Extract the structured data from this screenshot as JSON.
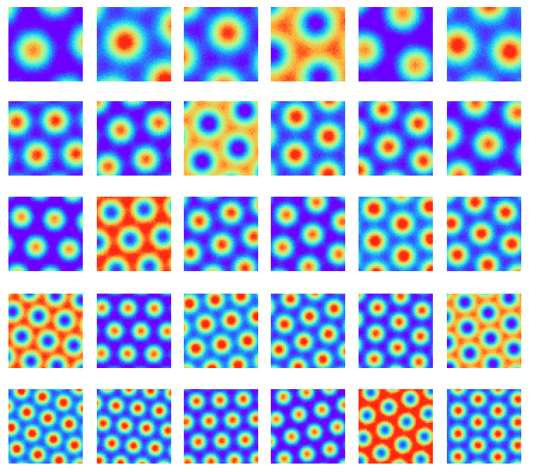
{
  "figure": {
    "rows": 5,
    "cols": 6,
    "colormap": "rainbow",
    "palette": [
      "#6a00ff",
      "#2f6bff",
      "#19d3f0",
      "#7cf3c2",
      "#c8f07a",
      "#ffb23a",
      "#ff2a12"
    ],
    "background_color": "#ffffff",
    "panels_per_row_pattern_scale": [
      1,
      2,
      3,
      4,
      5
    ]
  }
}
